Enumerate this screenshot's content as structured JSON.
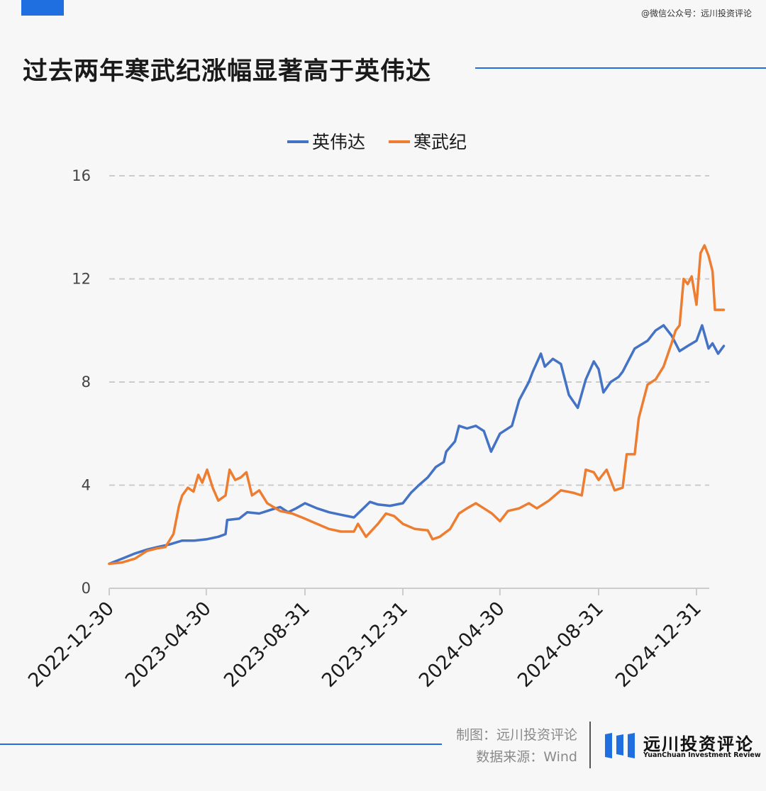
{
  "header": {
    "watermark": "@微信公众号：远川投资评论",
    "title": "过去两年寒武纪涨幅显著高于英伟达"
  },
  "footer": {
    "credit_line1": "制图：远川投资评论",
    "credit_line2": "数据来源：Wind",
    "brand_cn": "远川投资评论",
    "brand_en": "YuanChuan Investment Review"
  },
  "colors": {
    "accent": "#1f6fe0",
    "nvidia": "#4472c4",
    "cambricon": "#ed7d31"
  },
  "chart_data": {
    "type": "line",
    "title": "过去两年寒武纪涨幅显著高于英伟达",
    "xlabel": "",
    "ylabel": "",
    "ylim": [
      0,
      16
    ],
    "yticks": [
      0,
      4,
      8,
      12,
      16
    ],
    "xticks": [
      "2022-12-30",
      "2023-04-30",
      "2023-08-31",
      "2023-12-31",
      "2024-04-30",
      "2024-08-31",
      "2024-12-31"
    ],
    "grid": "horizontal dashed",
    "legend": "top-center",
    "series": [
      {
        "name": "英伟达",
        "points": [
          [
            "2022-12-30",
            0.95
          ],
          [
            "2023-01-15",
            1.15
          ],
          [
            "2023-01-31",
            1.35
          ],
          [
            "2023-02-15",
            1.5
          ],
          [
            "2023-02-28",
            1.6
          ],
          [
            "2023-03-15",
            1.7
          ],
          [
            "2023-03-31",
            1.85
          ],
          [
            "2023-04-15",
            1.85
          ],
          [
            "2023-04-30",
            1.9
          ],
          [
            "2023-05-15",
            2.0
          ],
          [
            "2023-05-24",
            2.1
          ],
          [
            "2023-05-26",
            2.65
          ],
          [
            "2023-06-10",
            2.7
          ],
          [
            "2023-06-20",
            2.95
          ],
          [
            "2023-07-05",
            2.9
          ],
          [
            "2023-07-20",
            3.05
          ],
          [
            "2023-07-31",
            3.15
          ],
          [
            "2023-08-10",
            2.95
          ],
          [
            "2023-08-20",
            3.1
          ],
          [
            "2023-08-31",
            3.3
          ],
          [
            "2023-09-15",
            3.1
          ],
          [
            "2023-09-30",
            2.95
          ],
          [
            "2023-10-15",
            2.85
          ],
          [
            "2023-10-31",
            2.75
          ],
          [
            "2023-11-10",
            3.05
          ],
          [
            "2023-11-20",
            3.35
          ],
          [
            "2023-11-30",
            3.25
          ],
          [
            "2023-12-15",
            3.2
          ],
          [
            "2023-12-31",
            3.3
          ],
          [
            "2024-01-10",
            3.7
          ],
          [
            "2024-01-20",
            4.0
          ],
          [
            "2024-01-31",
            4.3
          ],
          [
            "2024-02-10",
            4.7
          ],
          [
            "2024-02-20",
            4.9
          ],
          [
            "2024-02-23",
            5.3
          ],
          [
            "2024-03-05",
            5.7
          ],
          [
            "2024-03-10",
            6.3
          ],
          [
            "2024-03-20",
            6.2
          ],
          [
            "2024-03-31",
            6.3
          ],
          [
            "2024-04-10",
            6.1
          ],
          [
            "2024-04-19",
            5.3
          ],
          [
            "2024-04-30",
            6.0
          ],
          [
            "2024-05-15",
            6.3
          ],
          [
            "2024-05-24",
            7.3
          ],
          [
            "2024-06-05",
            8.0
          ],
          [
            "2024-06-10",
            8.4
          ],
          [
            "2024-06-20",
            9.1
          ],
          [
            "2024-06-25",
            8.6
          ],
          [
            "2024-07-05",
            8.9
          ],
          [
            "2024-07-15",
            8.7
          ],
          [
            "2024-07-25",
            7.5
          ],
          [
            "2024-08-05",
            7.0
          ],
          [
            "2024-08-15",
            8.1
          ],
          [
            "2024-08-25",
            8.8
          ],
          [
            "2024-08-31",
            8.5
          ],
          [
            "2024-09-06",
            7.6
          ],
          [
            "2024-09-15",
            8.0
          ],
          [
            "2024-09-25",
            8.2
          ],
          [
            "2024-09-30",
            8.4
          ],
          [
            "2024-10-15",
            9.3
          ],
          [
            "2024-10-31",
            9.6
          ],
          [
            "2024-11-10",
            10.0
          ],
          [
            "2024-11-20",
            10.2
          ],
          [
            "2024-11-30",
            9.8
          ],
          [
            "2024-12-10",
            9.2
          ],
          [
            "2024-12-20",
            9.4
          ],
          [
            "2024-12-31",
            9.6
          ],
          [
            "2025-01-07",
            10.2
          ],
          [
            "2025-01-15",
            9.3
          ],
          [
            "2025-01-20",
            9.5
          ],
          [
            "2025-01-27",
            9.1
          ],
          [
            "2025-02-03",
            9.4
          ]
        ]
      },
      {
        "name": "寒武纪",
        "points": [
          [
            "2022-12-30",
            0.95
          ],
          [
            "2023-01-15",
            1.0
          ],
          [
            "2023-01-31",
            1.15
          ],
          [
            "2023-02-15",
            1.45
          ],
          [
            "2023-02-28",
            1.55
          ],
          [
            "2023-03-10",
            1.6
          ],
          [
            "2023-03-20",
            2.1
          ],
          [
            "2023-03-27",
            3.2
          ],
          [
            "2023-03-31",
            3.6
          ],
          [
            "2023-04-07",
            3.9
          ],
          [
            "2023-04-14",
            3.75
          ],
          [
            "2023-04-20",
            4.4
          ],
          [
            "2023-04-25",
            4.1
          ],
          [
            "2023-05-01",
            4.6
          ],
          [
            "2023-05-08",
            3.9
          ],
          [
            "2023-05-15",
            3.4
          ],
          [
            "2023-05-24",
            3.6
          ],
          [
            "2023-05-29",
            4.6
          ],
          [
            "2023-06-05",
            4.2
          ],
          [
            "2023-06-12",
            4.3
          ],
          [
            "2023-06-19",
            4.5
          ],
          [
            "2023-06-26",
            3.6
          ],
          [
            "2023-07-05",
            3.8
          ],
          [
            "2023-07-15",
            3.3
          ],
          [
            "2023-07-31",
            3.0
          ],
          [
            "2023-08-15",
            2.9
          ],
          [
            "2023-08-31",
            2.7
          ],
          [
            "2023-09-15",
            2.5
          ],
          [
            "2023-09-30",
            2.3
          ],
          [
            "2023-10-15",
            2.2
          ],
          [
            "2023-10-31",
            2.2
          ],
          [
            "2023-11-05",
            2.5
          ],
          [
            "2023-11-15",
            2.0
          ],
          [
            "2023-11-30",
            2.5
          ],
          [
            "2023-12-10",
            2.9
          ],
          [
            "2023-12-20",
            2.8
          ],
          [
            "2023-12-31",
            2.5
          ],
          [
            "2024-01-15",
            2.3
          ],
          [
            "2024-01-31",
            2.25
          ],
          [
            "2024-02-06",
            1.9
          ],
          [
            "2024-02-15",
            2.0
          ],
          [
            "2024-02-28",
            2.3
          ],
          [
            "2024-03-10",
            2.9
          ],
          [
            "2024-03-20",
            3.1
          ],
          [
            "2024-03-31",
            3.3
          ],
          [
            "2024-04-10",
            3.1
          ],
          [
            "2024-04-20",
            2.9
          ],
          [
            "2024-04-30",
            2.6
          ],
          [
            "2024-05-10",
            3.0
          ],
          [
            "2024-05-24",
            3.1
          ],
          [
            "2024-06-05",
            3.3
          ],
          [
            "2024-06-15",
            3.1
          ],
          [
            "2024-06-30",
            3.4
          ],
          [
            "2024-07-15",
            3.8
          ],
          [
            "2024-07-31",
            3.7
          ],
          [
            "2024-08-10",
            3.6
          ],
          [
            "2024-08-15",
            4.6
          ],
          [
            "2024-08-25",
            4.5
          ],
          [
            "2024-08-31",
            4.2
          ],
          [
            "2024-09-10",
            4.6
          ],
          [
            "2024-09-20",
            3.8
          ],
          [
            "2024-09-30",
            3.9
          ],
          [
            "2024-10-05",
            5.2
          ],
          [
            "2024-10-15",
            5.2
          ],
          [
            "2024-10-20",
            6.6
          ],
          [
            "2024-10-31",
            7.9
          ],
          [
            "2024-11-10",
            8.1
          ],
          [
            "2024-11-20",
            8.6
          ],
          [
            "2024-11-30",
            9.5
          ],
          [
            "2024-12-05",
            10.0
          ],
          [
            "2024-12-10",
            10.2
          ],
          [
            "2024-12-15",
            12.0
          ],
          [
            "2024-12-20",
            11.8
          ],
          [
            "2024-12-25",
            12.1
          ],
          [
            "2024-12-31",
            11.0
          ],
          [
            "2025-01-05",
            13.0
          ],
          [
            "2025-01-10",
            13.3
          ],
          [
            "2025-01-15",
            12.9
          ],
          [
            "2025-01-20",
            12.3
          ],
          [
            "2025-01-23",
            10.8
          ],
          [
            "2025-02-03",
            10.8
          ]
        ]
      }
    ]
  }
}
